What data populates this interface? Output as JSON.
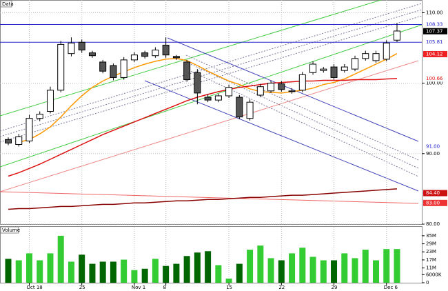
{
  "chart_data": {
    "type": "candlestick",
    "title": "Data",
    "categories": [
      null,
      null,
      "Oct 18",
      null,
      null,
      null,
      null,
      "25",
      null,
      null,
      null,
      null,
      "Nov 1",
      null,
      null,
      "8",
      null,
      null,
      null,
      null,
      null,
      "15",
      null,
      null,
      null,
      null,
      "22",
      null,
      null,
      null,
      null,
      "29",
      null,
      null,
      null,
      null,
      "Dec 6",
      null
    ],
    "open": [
      92.0,
      91.3,
      91.8,
      95.0,
      96.0,
      99.0,
      104.2,
      105.8,
      104.3,
      103.0,
      102.5,
      100.8,
      103.3,
      104.3,
      103.9,
      105.4,
      103.8,
      103.0,
      101.5,
      98.0,
      97.6,
      98.2,
      98.0,
      95.0,
      98.3,
      98.9,
      99.9,
      98.8,
      99.0,
      101.5,
      101.8,
      102.3,
      101.8,
      102.0,
      103.5,
      103.2,
      103.4,
      106.1
    ],
    "high": [
      92.3,
      92.8,
      95.5,
      96.0,
      99.5,
      106.0,
      106.5,
      106.2,
      104.6,
      103.3,
      102.8,
      103.7,
      104.4,
      104.6,
      105.1,
      106.5,
      104.0,
      103.3,
      102.0,
      98.4,
      98.5,
      99.8,
      98.3,
      97.7,
      99.9,
      100.4,
      100.3,
      99.3,
      101.6,
      103.1,
      102.3,
      102.7,
      102.7,
      103.9,
      104.6,
      104.6,
      106.1,
      108.5
    ],
    "low": [
      91.2,
      91.0,
      91.5,
      94.6,
      95.7,
      98.7,
      103.8,
      104.3,
      103.6,
      101.4,
      100.4,
      100.5,
      103.0,
      103.5,
      103.6,
      103.6,
      103.3,
      100.2,
      97.0,
      97.3,
      97.3,
      97.9,
      94.9,
      94.7,
      98.0,
      98.6,
      98.8,
      98.5,
      98.7,
      101.2,
      101.5,
      100.5,
      101.5,
      101.7,
      103.2,
      102.9,
      103.1,
      105.8
    ],
    "close": [
      91.5,
      92.4,
      95.0,
      95.6,
      99.0,
      105.5,
      105.7,
      104.7,
      103.9,
      101.7,
      100.8,
      103.3,
      104.0,
      103.8,
      104.7,
      104.0,
      103.6,
      100.5,
      98.6,
      97.6,
      98.2,
      99.4,
      95.2,
      97.3,
      99.5,
      100.0,
      99.1,
      98.9,
      101.2,
      102.7,
      102.0,
      100.8,
      102.3,
      103.5,
      104.2,
      104.2,
      105.7,
      107.4
    ],
    "up_color": "#ffffff",
    "down_color": "#555555",
    "series": [
      {
        "color": "#ff9900",
        "values": [
          null,
          91.6,
          92.0,
          92.8,
          93.8,
          95.2,
          96.8,
          98.2,
          99.4,
          100.3,
          101.0,
          101.6,
          102.2,
          102.7,
          103.1,
          103.4,
          103.5,
          103.2,
          102.5,
          101.7,
          101.0,
          100.3,
          99.8,
          99.2,
          98.8,
          98.7,
          98.6,
          98.8,
          99.0,
          99.3,
          99.8,
          100.1,
          100.6,
          101.3,
          102.0,
          102.7,
          103.4,
          104.2
        ]
      },
      {
        "color": "#dd1111",
        "values": [
          86.8,
          87.3,
          87.9,
          88.5,
          89.2,
          89.9,
          90.6,
          91.3,
          92.0,
          92.7,
          93.3,
          93.9,
          94.5,
          95.1,
          95.7,
          96.3,
          96.9,
          97.5,
          98.0,
          98.4,
          98.8,
          99.1,
          99.4,
          99.6,
          99.8,
          100.0,
          100.1,
          100.2,
          100.3,
          100.3,
          100.4,
          100.4,
          100.4,
          100.5,
          100.5,
          100.5,
          100.6,
          100.66
        ]
      },
      {
        "color": "#880000",
        "values": [
          82.1,
          82.2,
          82.2,
          82.3,
          82.4,
          82.5,
          82.5,
          82.6,
          82.7,
          82.8,
          82.8,
          82.9,
          83.0,
          83.0,
          83.1,
          83.2,
          83.3,
          83.3,
          83.4,
          83.5,
          83.5,
          83.6,
          83.7,
          83.8,
          83.8,
          83.9,
          84.0,
          84.1,
          84.1,
          84.2,
          84.3,
          84.4,
          84.5,
          84.6,
          84.7,
          84.8,
          84.9,
          85.0
        ]
      }
    ],
    "ylim": [
      80,
      111.8
    ],
    "yticks": [
      {
        "value": 80,
        "label": "80.00"
      },
      {
        "value": 90,
        "label": "90.00"
      },
      {
        "value": 100,
        "label": "100.00"
      },
      {
        "value": 110,
        "label": "110.00"
      }
    ],
    "grid": true,
    "levels": [
      {
        "value": 108.33,
        "color": "#2222cc",
        "bg": "#ffffff",
        "line": true
      },
      {
        "value": 107.37,
        "color": "#ffffff",
        "bg": "#000000"
      },
      {
        "value": 105.81,
        "color": "#2222cc",
        "bg": "#ffffff",
        "line": true
      },
      {
        "value": 104.12,
        "color": "#ffffff",
        "bg": "#ee2222"
      },
      {
        "value": 100.66,
        "color": "#dd1111",
        "bg": "#ffffff"
      },
      {
        "value": 91,
        "label": "91.00",
        "color": "#2222cc",
        "bg": "#ffffff"
      },
      {
        "value": 84.4,
        "label": "84.40",
        "color": "#ffffff",
        "bg": "#cc1111"
      },
      {
        "value": 83,
        "label": "83.00",
        "color": "#ffffff",
        "bg": "#ee3333"
      }
    ],
    "volume": {
      "title": "Volume",
      "values": [
        17.8,
        16.7,
        21.9,
        16.7,
        21.9,
        35.0,
        15.7,
        20.9,
        14.1,
        15.7,
        15.7,
        17.2,
        9.4,
        10.4,
        17.8,
        12.5,
        14.1,
        19.9,
        22.5,
        23.5,
        13.1,
        3.1,
        14.1,
        24.6,
        27.7,
        18.3,
        16.7,
        21.9,
        26.1,
        19.3,
        16.7,
        16.7,
        21.9,
        18.3,
        24.6,
        16.7,
        25.1,
        25.1
      ],
      "up_color": "#33cc33",
      "down_color": "#006600",
      "ylim": [
        0,
        37
      ],
      "yticks": [
        0,
        {
          "value": 6,
          "label": "6000K"
        },
        {
          "value": 11,
          "label": "11M"
        },
        {
          "value": 17,
          "label": "17M"
        },
        {
          "value": 23,
          "label": "23M"
        },
        {
          "value": 29,
          "label": "29M"
        },
        {
          "value": 35,
          "label": "35M"
        }
      ]
    }
  }
}
